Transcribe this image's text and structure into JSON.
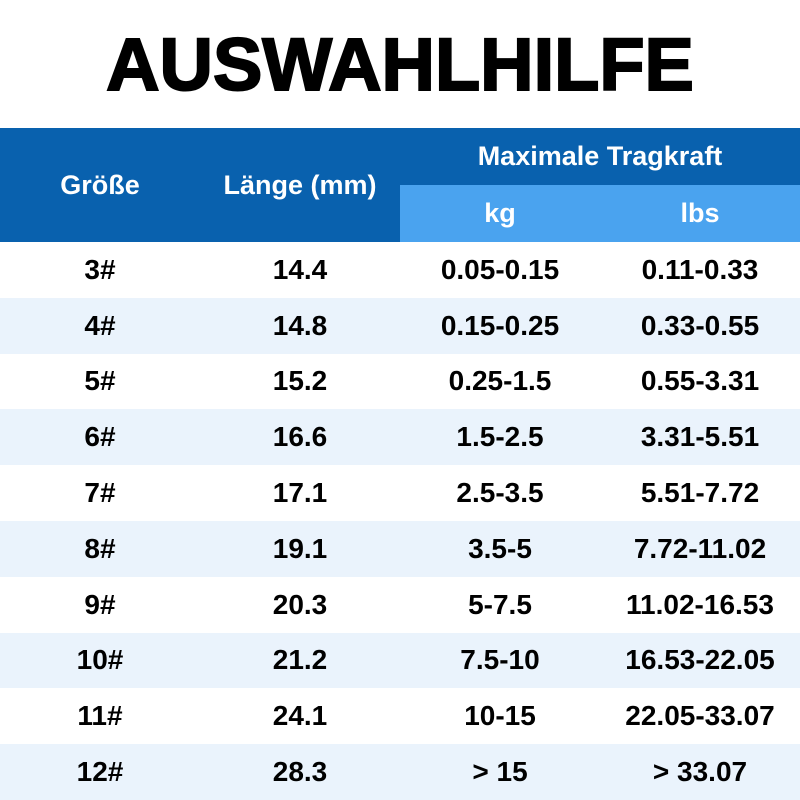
{
  "chart_data": {
    "type": "table",
    "title": "AUSWAHLHILFE",
    "headers": {
      "size": "Größe",
      "length": "Länge (mm)",
      "capacity": "Maximale Tragkraft",
      "kg": "kg",
      "lbs": "lbs"
    },
    "rows": [
      {
        "size": "3#",
        "length": "14.4",
        "kg": "0.05-0.15",
        "lbs": "0.11-0.33"
      },
      {
        "size": "4#",
        "length": "14.8",
        "kg": "0.15-0.25",
        "lbs": "0.33-0.55"
      },
      {
        "size": "5#",
        "length": "15.2",
        "kg": "0.25-1.5",
        "lbs": "0.55-3.31"
      },
      {
        "size": "6#",
        "length": "16.6",
        "kg": "1.5-2.5",
        "lbs": "3.31-5.51"
      },
      {
        "size": "7#",
        "length": "17.1",
        "kg": "2.5-3.5",
        "lbs": "5.51-7.72"
      },
      {
        "size": "8#",
        "length": "19.1",
        "kg": "3.5-5",
        "lbs": "7.72-11.02"
      },
      {
        "size": "9#",
        "length": "20.3",
        "kg": "5-7.5",
        "lbs": "11.02-16.53"
      },
      {
        "size": "10#",
        "length": "21.2",
        "kg": "7.5-10",
        "lbs": "16.53-22.05"
      },
      {
        "size": "11#",
        "length": "24.1",
        "kg": "10-15",
        "lbs": "22.05-33.07"
      },
      {
        "size": "12#",
        "length": "28.3",
        "kg": "> 15",
        "lbs": "> 33.07"
      }
    ],
    "layout_hints": {
      "columns": 4,
      "capacity_group_spans": [
        "kg",
        "lbs"
      ],
      "striped_rows": "even rows tinted light blue"
    }
  },
  "colors": {
    "header_bg": "#0961ae",
    "subheader_bg": "#4aa3ef",
    "row_bg": "#ffffff",
    "row_alt_bg": "#eaf3fc",
    "header_text": "#ffffff",
    "body_text": "#000000",
    "title_text": "#000000"
  }
}
